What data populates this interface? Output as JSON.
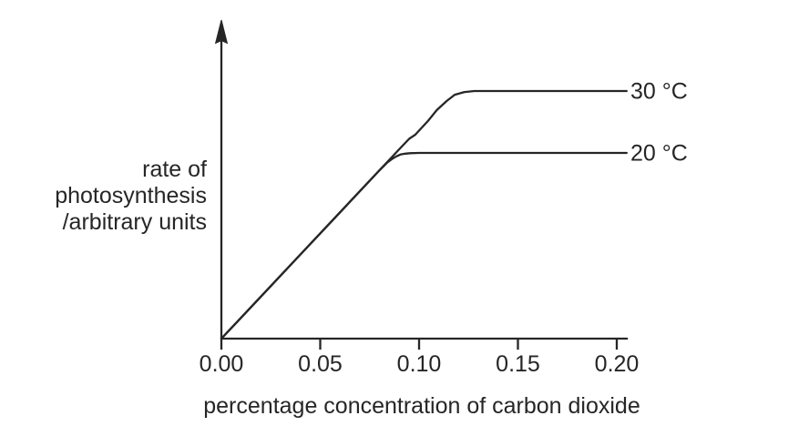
{
  "figure": {
    "ink_color": "#262626",
    "background_color": "#ffffff"
  },
  "chart_data": {
    "type": "line",
    "title": "",
    "xlabel": "percentage concentration of carbon dioxide",
    "ylabel": "rate of photosynthesis /arbitrary units",
    "ylabel_lines": [
      "rate of",
      "photosynthesis",
      "/arbitrary units"
    ],
    "xlim": [
      0,
      0.2
    ],
    "ylim": [
      0,
      110
    ],
    "x_tick_values": [
      0.0,
      0.05,
      0.1,
      0.15,
      0.2
    ],
    "x_tick_labels": [
      "0.00",
      "0.05",
      "0.10",
      "0.15",
      "0.20"
    ],
    "y_tick_labels": [],
    "grid": false,
    "legend_position": "labels-at-line-ends-right",
    "axis_style": "y-axis-arrowhead, no y ticks (arbitrary units)",
    "series": [
      {
        "name": "30C",
        "label": "30 °C",
        "plateau_value": 100,
        "x": [
          0,
          0.02,
          0.04,
          0.06,
          0.08,
          0.09,
          0.095,
          0.098,
          0.1046,
          0.109,
          0.114,
          0.118,
          0.123,
          0.128,
          0.15,
          0.175,
          0.205
        ],
        "y": [
          0,
          17,
          34,
          51,
          68,
          76.5,
          80.7,
          82.3,
          88,
          92.3,
          96,
          98.5,
          99.6,
          100,
          100,
          100,
          100
        ]
      },
      {
        "name": "20C",
        "label": "20 °C",
        "plateau_value": 75,
        "x": [
          0,
          0.02,
          0.04,
          0.06,
          0.08,
          0.084,
          0.0862,
          0.0885,
          0.0908,
          0.0931,
          0.0954,
          0.1,
          0.125,
          0.15,
          0.175,
          0.205
        ],
        "y": [
          0,
          17,
          34,
          51,
          68,
          71.2,
          72.5,
          73.6,
          74.4,
          74.7,
          74.9,
          75,
          75,
          75,
          75,
          75
        ]
      }
    ]
  }
}
